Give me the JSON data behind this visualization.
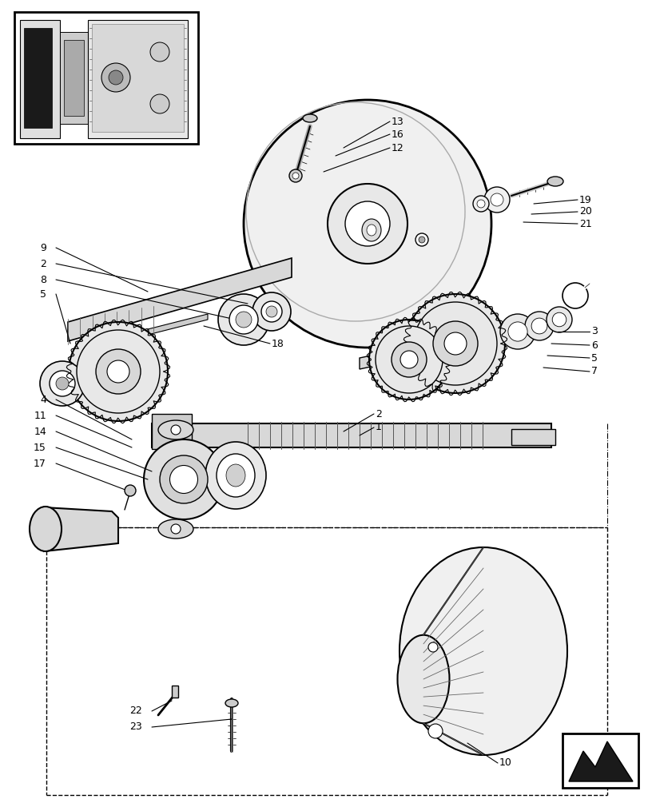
{
  "background_color": "#ffffff",
  "line_color": "#000000",
  "figure_width": 8.12,
  "figure_height": 10.0,
  "dpi": 100
}
